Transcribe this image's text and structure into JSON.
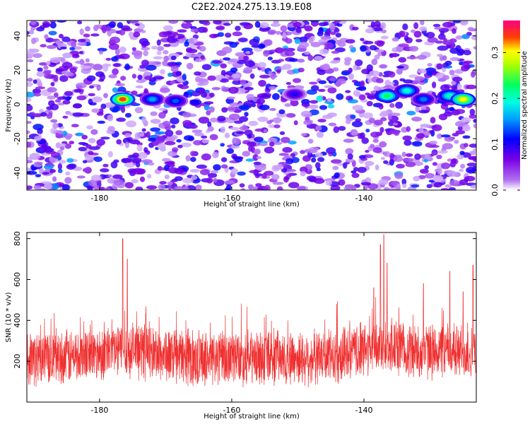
{
  "title": "C2E2.2024.275.13.19.E08",
  "chart_data": [
    {
      "type": "heatmap",
      "title": "C2E2.2024.275.13.19.E08",
      "xlabel": "Height of straight line (km)",
      "ylabel": "Frequency (Hz)",
      "xlim": [
        -191,
        -123
      ],
      "ylim": [
        -50,
        49
      ],
      "x_ticks": [
        -180,
        -160,
        -140
      ],
      "y_ticks": [
        -40,
        -20,
        0,
        20,
        40
      ],
      "colorbar": {
        "label": "Normalized spectral amplitude",
        "range": [
          0.0,
          0.37
        ],
        "ticks": [
          0.0,
          0.1,
          0.2,
          0.3
        ],
        "colormap": [
          "#ffffff",
          "#7a00e6",
          "#0000ff",
          "#00c8ff",
          "#00ff80",
          "#ffff00",
          "#ff0000",
          "#ff0080"
        ]
      },
      "hotspots": [
        {
          "x": -176.5,
          "y": 3,
          "value": 0.33
        },
        {
          "x": -172,
          "y": 3,
          "value": 0.14
        },
        {
          "x": -168.5,
          "y": 2,
          "value": 0.12
        },
        {
          "x": -136.5,
          "y": 5,
          "value": 0.22
        },
        {
          "x": -133.5,
          "y": 8,
          "value": 0.18
        },
        {
          "x": -131,
          "y": 3,
          "value": 0.13
        },
        {
          "x": -127,
          "y": 5,
          "value": 0.19
        },
        {
          "x": -125,
          "y": 3,
          "value": 0.3
        },
        {
          "x": -150.5,
          "y": 6,
          "value": 0.09
        }
      ]
    },
    {
      "type": "line",
      "xlabel": "Height of straight line (km)",
      "ylabel": "SNR (10 * v/v)",
      "xlim": [
        -191,
        -123
      ],
      "ylim": [
        0,
        830
      ],
      "x_ticks": [
        -180,
        -160,
        -140
      ],
      "y_ticks": [
        200,
        400,
        600,
        800
      ],
      "line_color": "#f03030",
      "baseline_mean": 215,
      "peaks": [
        {
          "x": -176.5,
          "y": 800
        },
        {
          "x": -175.8,
          "y": 700
        },
        {
          "x": -173,
          "y": 430
        },
        {
          "x": -137.5,
          "y": 770
        },
        {
          "x": -137,
          "y": 820
        },
        {
          "x": -136.5,
          "y": 680
        },
        {
          "x": -138.5,
          "y": 560
        },
        {
          "x": -131,
          "y": 580
        },
        {
          "x": -127,
          "y": 640
        },
        {
          "x": -125,
          "y": 540
        },
        {
          "x": -123.5,
          "y": 670
        }
      ]
    }
  ]
}
